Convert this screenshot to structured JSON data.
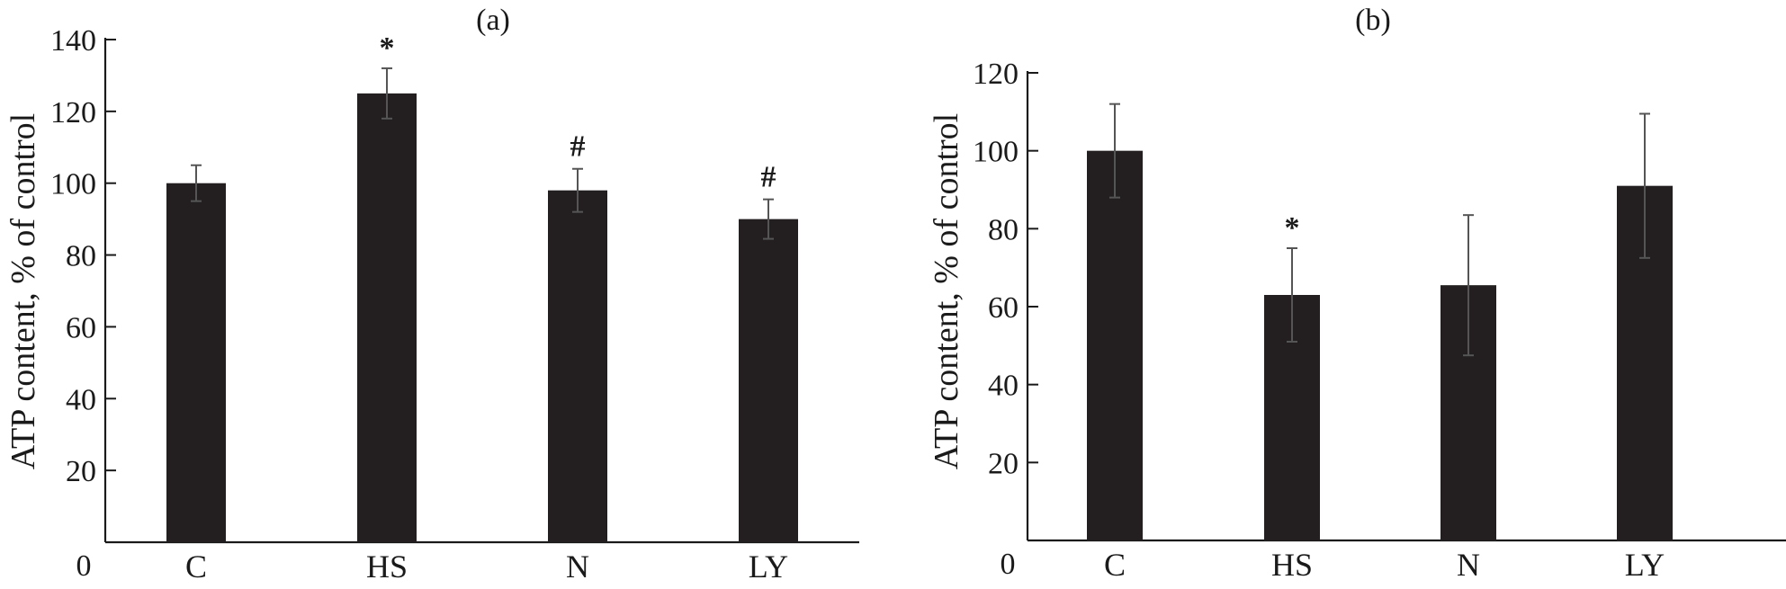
{
  "chart_data": [
    {
      "type": "bar",
      "panel_label": "(a)",
      "categories": [
        "C",
        "HS",
        "N",
        "LY"
      ],
      "values": [
        100,
        125,
        98,
        90
      ],
      "errors": [
        5,
        7,
        6,
        5.5
      ],
      "significance": [
        "",
        "*",
        "#",
        "#"
      ],
      "ylabel": "ATP content, % of control",
      "ylim": [
        0,
        140
      ],
      "yticks": [
        20,
        40,
        60,
        80,
        100,
        120,
        140
      ],
      "zero_label": "0",
      "bar_color": "#231f20",
      "grid": false
    },
    {
      "type": "bar",
      "panel_label": "(b)",
      "categories": [
        "C",
        "HS",
        "N",
        "LY"
      ],
      "values": [
        100,
        63,
        65.5,
        91
      ],
      "errors": [
        12,
        12,
        18,
        18.5
      ],
      "significance": [
        "",
        "*",
        "",
        ""
      ],
      "ylabel": "ATP content, % of control",
      "ylim": [
        0,
        120
      ],
      "yticks": [
        20,
        40,
        60,
        80,
        100,
        120
      ],
      "zero_label": "0",
      "bar_color": "#231f20",
      "grid": false
    }
  ]
}
